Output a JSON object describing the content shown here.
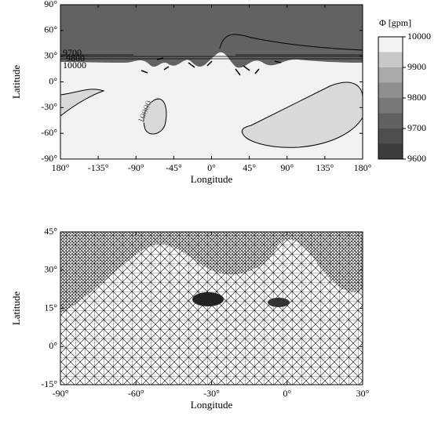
{
  "chart_data": [
    {
      "type": "contour",
      "xlabel": "Longitude",
      "ylabel": "Latitude",
      "xlim": [
        -180,
        180
      ],
      "xticks": [
        {
          "value": -180,
          "label": "180°"
        },
        {
          "value": -135,
          "label": "-135°"
        },
        {
          "value": -90,
          "label": "-90°"
        },
        {
          "value": -45,
          "label": "-45°"
        },
        {
          "value": 0,
          "label": "0°"
        },
        {
          "value": 45,
          "label": "45°"
        },
        {
          "value": 90,
          "label": "90°"
        },
        {
          "value": 135,
          "label": "135°"
        },
        {
          "value": 180,
          "label": "180°"
        }
      ],
      "ylim": [
        -90,
        90
      ],
      "yticks": [
        {
          "value": -90,
          "label": "-90°"
        },
        {
          "value": -60,
          "label": "-60°"
        },
        {
          "value": -30,
          "label": "-30°"
        },
        {
          "value": 0,
          "label": "0°"
        },
        {
          "value": 30,
          "label": "30°"
        },
        {
          "value": 60,
          "label": "60°"
        },
        {
          "value": 90,
          "label": "90°"
        }
      ],
      "contour_levels": [
        9700,
        9800,
        10000,
        10000
      ],
      "colorbar": {
        "title": "Φ [gpm]",
        "lim": [
          9600,
          10000
        ],
        "ticks": [
          9600,
          9700,
          9800,
          9900,
          10000
        ],
        "colors": [
          "#3c3c3c",
          "#4e4e4e",
          "#616161",
          "#777777",
          "#8f8f8f",
          "#aaaaaa",
          "#c8c8c8",
          "#f2f2f2"
        ]
      }
    },
    {
      "type": "mesh",
      "xlabel": "Longitude",
      "ylabel": "Latitude",
      "xlim": [
        -90,
        30
      ],
      "xticks": [
        {
          "value": -90,
          "label": "-90°"
        },
        {
          "value": -60,
          "label": "-60°"
        },
        {
          "value": -30,
          "label": "-30°"
        },
        {
          "value": 0,
          "label": "0°"
        },
        {
          "value": 30,
          "label": "30°"
        }
      ],
      "ylim": [
        -15,
        45
      ],
      "yticks": [
        {
          "value": -15,
          "label": "-15°"
        },
        {
          "value": 0,
          "label": "0°"
        },
        {
          "value": 15,
          "label": "15°"
        },
        {
          "value": 30,
          "label": "30°"
        },
        {
          "value": 45,
          "label": "45°"
        }
      ]
    }
  ]
}
